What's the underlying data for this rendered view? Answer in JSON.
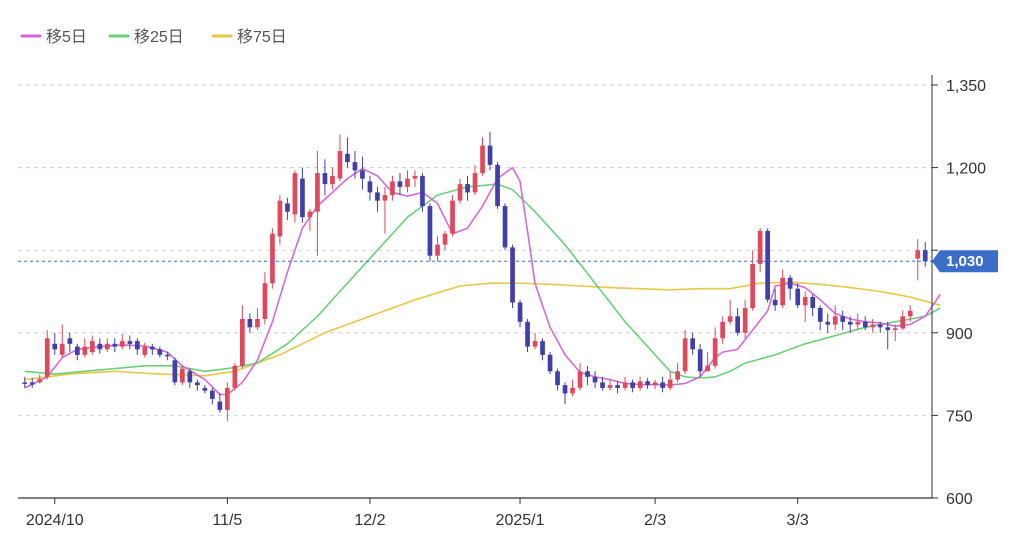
{
  "chart_data": {
    "type": "candlestick",
    "legend": [
      {
        "label": "移5日",
        "color": "#d36ad8"
      },
      {
        "label": "移25日",
        "color": "#6cd07a"
      },
      {
        "label": "移75日",
        "color": "#e8c84a"
      }
    ],
    "ylim": [
      600,
      1350
    ],
    "yticks": [
      600,
      750,
      900,
      1050,
      1200,
      1350
    ],
    "ytick_labels": [
      "600",
      "750",
      "900",
      "1,050",
      "1,200",
      "1,350"
    ],
    "xticks": [
      {
        "label": "2024/10",
        "index": 4
      },
      {
        "label": "11/5",
        "index": 27
      },
      {
        "label": "12/2",
        "index": 46
      },
      {
        "label": "2025/1",
        "index": 66
      },
      {
        "label": "2/3",
        "index": 84
      },
      {
        "label": "3/3",
        "index": 103
      }
    ],
    "current_price": 1030,
    "current_price_label": "1,030",
    "colors": {
      "up": "#e0485c",
      "down": "#4040a8",
      "price_tag": "#3a6ec9",
      "grid": "#d0d0d0",
      "axis": "#333333"
    },
    "candles": [
      [
        810,
        808,
        820,
        800
      ],
      [
        810,
        806,
        818,
        800
      ],
      [
        810,
        816,
        824,
        808
      ],
      [
        820,
        890,
        905,
        815
      ],
      [
        880,
        870,
        900,
        860
      ],
      [
        860,
        880,
        915,
        855
      ],
      [
        890,
        880,
        900,
        865
      ],
      [
        875,
        860,
        880,
        850
      ],
      [
        860,
        875,
        890,
        855
      ],
      [
        865,
        885,
        895,
        860
      ],
      [
        880,
        870,
        890,
        862
      ],
      [
        870,
        880,
        890,
        865
      ],
      [
        880,
        875,
        890,
        865
      ],
      [
        875,
        885,
        898,
        870
      ],
      [
        885,
        880,
        895,
        870
      ],
      [
        885,
        870,
        890,
        860
      ],
      [
        860,
        875,
        882,
        855
      ],
      [
        875,
        870,
        880,
        860
      ],
      [
        870,
        860,
        875,
        855
      ],
      [
        860,
        858,
        865,
        850
      ],
      [
        850,
        810,
        855,
        805
      ],
      [
        810,
        835,
        840,
        805
      ],
      [
        830,
        810,
        835,
        800
      ],
      [
        810,
        805,
        815,
        795
      ],
      [
        800,
        795,
        805,
        790
      ],
      [
        795,
        780,
        800,
        770
      ],
      [
        775,
        760,
        790,
        755
      ],
      [
        760,
        800,
        810,
        740
      ],
      [
        800,
        840,
        845,
        795
      ],
      [
        840,
        925,
        950,
        835
      ],
      [
        925,
        910,
        935,
        900
      ],
      [
        910,
        925,
        945,
        905
      ],
      [
        925,
        990,
        1010,
        915
      ],
      [
        990,
        1080,
        1090,
        980
      ],
      [
        1075,
        1140,
        1150,
        1060
      ],
      [
        1135,
        1120,
        1145,
        1105
      ],
      [
        1115,
        1190,
        1195,
        1100
      ],
      [
        1180,
        1110,
        1200,
        1100
      ],
      [
        1110,
        1120,
        1125,
        1085
      ],
      [
        1120,
        1190,
        1230,
        1040
      ],
      [
        1190,
        1170,
        1215,
        1150
      ],
      [
        1170,
        1185,
        1200,
        1160
      ],
      [
        1180,
        1230,
        1260,
        1175
      ],
      [
        1225,
        1210,
        1255,
        1200
      ],
      [
        1210,
        1195,
        1230,
        1180
      ],
      [
        1195,
        1180,
        1220,
        1160
      ],
      [
        1175,
        1155,
        1185,
        1140
      ],
      [
        1155,
        1140,
        1165,
        1120
      ],
      [
        1140,
        1150,
        1165,
        1080
      ],
      [
        1150,
        1175,
        1185,
        1140
      ],
      [
        1175,
        1165,
        1190,
        1150
      ],
      [
        1165,
        1180,
        1195,
        1155
      ],
      [
        1180,
        1185,
        1195,
        1165
      ],
      [
        1185,
        1130,
        1190,
        1120
      ],
      [
        1130,
        1040,
        1135,
        1030
      ],
      [
        1040,
        1060,
        1075,
        1030
      ],
      [
        1060,
        1080,
        1085,
        1050
      ],
      [
        1080,
        1140,
        1150,
        1075
      ],
      [
        1140,
        1170,
        1180,
        1135
      ],
      [
        1170,
        1155,
        1185,
        1140
      ],
      [
        1155,
        1190,
        1205,
        1150
      ],
      [
        1190,
        1240,
        1255,
        1185
      ],
      [
        1240,
        1205,
        1265,
        1195
      ],
      [
        1205,
        1130,
        1210,
        1125
      ],
      [
        1130,
        1055,
        1135,
        1050
      ],
      [
        1055,
        955,
        1060,
        945
      ],
      [
        955,
        920,
        960,
        910
      ],
      [
        920,
        875,
        925,
        865
      ],
      [
        875,
        885,
        900,
        870
      ],
      [
        885,
        860,
        890,
        850
      ],
      [
        860,
        830,
        865,
        825
      ],
      [
        830,
        805,
        835,
        795
      ],
      [
        805,
        790,
        810,
        770
      ],
      [
        790,
        800,
        815,
        785
      ],
      [
        800,
        830,
        845,
        795
      ],
      [
        830,
        820,
        840,
        805
      ],
      [
        820,
        810,
        830,
        800
      ],
      [
        810,
        800,
        820,
        795
      ],
      [
        800,
        805,
        815,
        795
      ],
      [
        805,
        800,
        812,
        790
      ],
      [
        800,
        810,
        820,
        795
      ],
      [
        810,
        800,
        815,
        792
      ],
      [
        800,
        812,
        820,
        795
      ],
      [
        812,
        805,
        818,
        798
      ],
      [
        805,
        810,
        815,
        798
      ],
      [
        810,
        800,
        820,
        792
      ],
      [
        800,
        815,
        830,
        795
      ],
      [
        815,
        830,
        845,
        810
      ],
      [
        830,
        890,
        905,
        825
      ],
      [
        890,
        870,
        900,
        860
      ],
      [
        870,
        830,
        880,
        820
      ],
      [
        830,
        840,
        865,
        830
      ],
      [
        840,
        890,
        910,
        835
      ],
      [
        890,
        920,
        930,
        880
      ],
      [
        920,
        930,
        960,
        915
      ],
      [
        930,
        900,
        945,
        895
      ],
      [
        900,
        945,
        960,
        890
      ],
      [
        945,
        1025,
        1050,
        940
      ],
      [
        1025,
        1085,
        1090,
        1010
      ],
      [
        1085,
        960,
        1090,
        955
      ],
      [
        960,
        950,
        980,
        940
      ],
      [
        950,
        1000,
        1015,
        945
      ],
      [
        1000,
        980,
        1005,
        960
      ],
      [
        980,
        950,
        990,
        945
      ],
      [
        950,
        965,
        975,
        920
      ],
      [
        965,
        945,
        970,
        930
      ],
      [
        945,
        920,
        950,
        905
      ],
      [
        920,
        915,
        935,
        900
      ],
      [
        915,
        930,
        950,
        905
      ],
      [
        930,
        920,
        940,
        905
      ],
      [
        920,
        915,
        930,
        900
      ],
      [
        915,
        920,
        935,
        905
      ],
      [
        920,
        910,
        930,
        905
      ],
      [
        910,
        915,
        925,
        900
      ],
      [
        915,
        910,
        920,
        900
      ],
      [
        910,
        905,
        920,
        870
      ],
      [
        905,
        908,
        915,
        885
      ],
      [
        908,
        930,
        940,
        905
      ],
      [
        930,
        940,
        950,
        920
      ],
      [
        1035,
        1050,
        1070,
        995
      ],
      [
        1050,
        1030,
        1065,
        1020
      ]
    ],
    "ma5": [
      [
        0,
        800
      ],
      [
        3,
        820
      ],
      [
        5,
        855
      ],
      [
        7,
        870
      ],
      [
        10,
        875
      ],
      [
        13,
        878
      ],
      [
        16,
        876
      ],
      [
        19,
        865
      ],
      [
        21,
        840
      ],
      [
        24,
        815
      ],
      [
        26,
        788
      ],
      [
        27,
        788
      ],
      [
        29,
        810
      ],
      [
        31,
        850
      ],
      [
        33,
        920
      ],
      [
        35,
        1010
      ],
      [
        37,
        1090
      ],
      [
        39,
        1130
      ],
      [
        41,
        1155
      ],
      [
        43,
        1180
      ],
      [
        45,
        1198
      ],
      [
        47,
        1185
      ],
      [
        49,
        1155
      ],
      [
        51,
        1148
      ],
      [
        53,
        1155
      ],
      [
        55,
        1135
      ],
      [
        57,
        1080
      ],
      [
        59,
        1090
      ],
      [
        61,
        1130
      ],
      [
        63,
        1180
      ],
      [
        65,
        1200
      ],
      [
        66,
        1175
      ],
      [
        67,
        1085
      ],
      [
        68,
        990
      ],
      [
        70,
        910
      ],
      [
        72,
        860
      ],
      [
        74,
        828
      ],
      [
        76,
        820
      ],
      [
        78,
        815
      ],
      [
        80,
        808
      ],
      [
        82,
        806
      ],
      [
        84,
        806
      ],
      [
        86,
        805
      ],
      [
        88,
        808
      ],
      [
        90,
        820
      ],
      [
        92,
        855
      ],
      [
        93,
        865
      ],
      [
        95,
        870
      ],
      [
        97,
        905
      ],
      [
        99,
        940
      ],
      [
        100,
        985
      ],
      [
        102,
        990
      ],
      [
        104,
        982
      ],
      [
        106,
        960
      ],
      [
        108,
        935
      ],
      [
        110,
        925
      ],
      [
        112,
        920
      ],
      [
        114,
        918
      ],
      [
        116,
        912
      ],
      [
        118,
        915
      ],
      [
        120,
        930
      ],
      [
        122,
        970
      ]
    ],
    "ma25": [
      [
        0,
        830
      ],
      [
        4,
        825
      ],
      [
        8,
        830
      ],
      [
        12,
        835
      ],
      [
        16,
        840
      ],
      [
        20,
        840
      ],
      [
        24,
        830
      ],
      [
        27,
        835
      ],
      [
        31,
        845
      ],
      [
        35,
        880
      ],
      [
        39,
        930
      ],
      [
        43,
        990
      ],
      [
        47,
        1050
      ],
      [
        51,
        1110
      ],
      [
        55,
        1150
      ],
      [
        59,
        1165
      ],
      [
        63,
        1170
      ],
      [
        65,
        1160
      ],
      [
        68,
        1120
      ],
      [
        72,
        1060
      ],
      [
        76,
        990
      ],
      [
        80,
        920
      ],
      [
        84,
        860
      ],
      [
        86,
        830
      ],
      [
        88,
        820
      ],
      [
        90,
        818
      ],
      [
        92,
        820
      ],
      [
        94,
        830
      ],
      [
        96,
        845
      ],
      [
        100,
        860
      ],
      [
        104,
        880
      ],
      [
        108,
        895
      ],
      [
        112,
        910
      ],
      [
        116,
        920
      ],
      [
        120,
        930
      ],
      [
        122,
        945
      ]
    ],
    "ma75": [
      [
        0,
        815
      ],
      [
        6,
        825
      ],
      [
        12,
        830
      ],
      [
        18,
        825
      ],
      [
        24,
        822
      ],
      [
        28,
        830
      ],
      [
        34,
        860
      ],
      [
        40,
        900
      ],
      [
        46,
        930
      ],
      [
        52,
        960
      ],
      [
        58,
        985
      ],
      [
        62,
        990
      ],
      [
        66,
        990
      ],
      [
        70,
        988
      ],
      [
        74,
        985
      ],
      [
        78,
        982
      ],
      [
        82,
        980
      ],
      [
        86,
        978
      ],
      [
        90,
        980
      ],
      [
        94,
        980
      ],
      [
        98,
        990
      ],
      [
        102,
        992
      ],
      [
        106,
        988
      ],
      [
        110,
        982
      ],
      [
        114,
        975
      ],
      [
        118,
        965
      ],
      [
        122,
        950
      ]
    ]
  }
}
